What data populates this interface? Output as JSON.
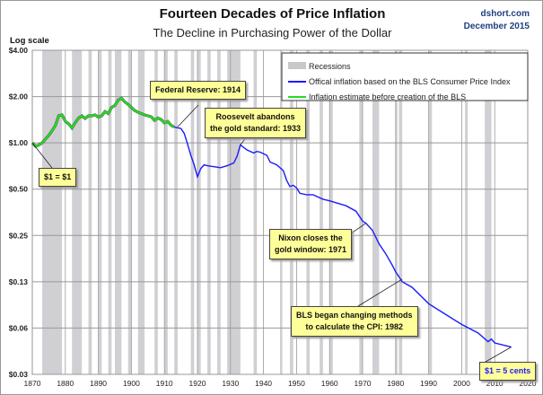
{
  "header": {
    "title": "Fourteen Decades of Price Inflation",
    "subtitle": "The Decline in Purchasing Power of the Dollar",
    "source": "dshort.com",
    "date": "December 2015",
    "ylabel": "Log scale"
  },
  "chart_data": {
    "type": "line",
    "title": "Fourteen Decades of Price Inflation",
    "subtitle": "The Decline in Purchasing Power of the Dollar",
    "ylabel": "Log scale",
    "yscale": "log",
    "xlim": [
      1870,
      2020
    ],
    "ylim": [
      0.03125,
      4
    ],
    "xticks": [
      "1870",
      "1880",
      "1890",
      "1900",
      "1910",
      "1920",
      "1930",
      "1940",
      "1950",
      "1960",
      "1970",
      "1980",
      "1990",
      "2000",
      "2010",
      "2020"
    ],
    "yticks": [
      {
        "v": 4,
        "label": "$4.00"
      },
      {
        "v": 2,
        "label": "$2.00"
      },
      {
        "v": 1,
        "label": "$1.00"
      },
      {
        "v": 0.5,
        "label": "$0.50"
      },
      {
        "v": 0.25,
        "label": "$0.25"
      },
      {
        "v": 0.125,
        "label": "$0.13"
      },
      {
        "v": 0.0625,
        "label": "$0.06"
      },
      {
        "v": 0.03125,
        "label": "$0.03"
      }
    ],
    "grid": true,
    "legend": {
      "placement": "top-right",
      "entries": [
        {
          "name": "Recessions",
          "color": "#c8c8c8"
        },
        {
          "name": "Offical inflation based on the BLS Consumer Price Index",
          "color": "#1a1aff"
        },
        {
          "name": "Inflation estimate before creation of the BLS",
          "color": "#22dd22"
        }
      ]
    },
    "recessions": [
      [
        1873,
        1879
      ],
      [
        1882,
        1885
      ],
      [
        1887,
        1888
      ],
      [
        1890,
        1891
      ],
      [
        1893,
        1894
      ],
      [
        1895,
        1897
      ],
      [
        1899,
        1900
      ],
      [
        1902,
        1904
      ],
      [
        1907,
        1908
      ],
      [
        1910,
        1911
      ],
      [
        1913,
        1914
      ],
      [
        1918,
        1919
      ],
      [
        1920,
        1921
      ],
      [
        1923,
        1924
      ],
      [
        1926,
        1927
      ],
      [
        1929,
        1933
      ],
      [
        1937,
        1938
      ],
      [
        1945,
        1945.7
      ],
      [
        1948,
        1949
      ],
      [
        1953,
        1954
      ],
      [
        1957,
        1958
      ],
      [
        1960,
        1961
      ],
      [
        1969,
        1970
      ],
      [
        1973,
        1975
      ],
      [
        1980,
        1980.5
      ],
      [
        1981,
        1982
      ],
      [
        1990,
        1991
      ],
      [
        2001,
        2001.8
      ],
      [
        2007,
        2009
      ]
    ],
    "series": [
      {
        "name": "Inflation estimate before creation of the BLS",
        "color": "#22dd22",
        "x": [
          1870,
          1871,
          1872,
          1873,
          1874,
          1875,
          1876,
          1877,
          1878,
          1879,
          1880,
          1881,
          1882,
          1883,
          1884,
          1885,
          1886,
          1887,
          1888,
          1889,
          1890,
          1891,
          1892,
          1893,
          1894,
          1895,
          1896,
          1897,
          1898,
          1899,
          1900,
          1901,
          1902,
          1903,
          1904,
          1905,
          1906,
          1907,
          1908,
          1909,
          1910,
          1911,
          1912,
          1913
        ],
        "y": [
          1.0,
          0.95,
          0.97,
          1.0,
          1.06,
          1.12,
          1.2,
          1.3,
          1.5,
          1.52,
          1.38,
          1.33,
          1.25,
          1.35,
          1.45,
          1.5,
          1.44,
          1.5,
          1.5,
          1.52,
          1.47,
          1.5,
          1.6,
          1.55,
          1.7,
          1.75,
          1.9,
          1.95,
          1.85,
          1.78,
          1.7,
          1.62,
          1.58,
          1.55,
          1.52,
          1.5,
          1.48,
          1.4,
          1.45,
          1.42,
          1.35,
          1.38,
          1.3,
          1.27
        ]
      },
      {
        "name": "Offical inflation based on the BLS Consumer Price Index",
        "color": "#1a1aff",
        "x": [
          1913,
          1914,
          1915,
          1916,
          1917,
          1918,
          1919,
          1920,
          1921,
          1922,
          1923,
          1925,
          1927,
          1929,
          1931,
          1932,
          1933,
          1935,
          1937,
          1938,
          1939,
          1941,
          1942,
          1944,
          1946,
          1947,
          1948,
          1949,
          1950,
          1951,
          1953,
          1955,
          1958,
          1960,
          1965,
          1968,
          1970,
          1971,
          1973,
          1975,
          1977,
          1979,
          1980,
          1981,
          1982,
          1985,
          1990,
          1995,
          2000,
          2005,
          2008,
          2009,
          2010,
          2015
        ],
        "y": [
          1.27,
          1.25,
          1.24,
          1.15,
          0.98,
          0.83,
          0.72,
          0.6,
          0.68,
          0.72,
          0.71,
          0.7,
          0.69,
          0.71,
          0.74,
          0.82,
          0.97,
          0.9,
          0.86,
          0.88,
          0.87,
          0.83,
          0.75,
          0.72,
          0.66,
          0.57,
          0.52,
          0.53,
          0.51,
          0.47,
          0.46,
          0.46,
          0.43,
          0.42,
          0.39,
          0.36,
          0.31,
          0.3,
          0.27,
          0.22,
          0.19,
          0.16,
          0.145,
          0.135,
          0.125,
          0.115,
          0.09,
          0.077,
          0.066,
          0.058,
          0.051,
          0.053,
          0.05,
          0.047
        ]
      }
    ],
    "annotations": [
      {
        "text": "Federal Reserve: 1914",
        "x": 1914,
        "y": 1.27
      },
      {
        "text": "Roosevelt abandons the gold standard: 1933",
        "line1": "Roosevelt abandons",
        "line2": "the gold standard: 1933",
        "x": 1933,
        "y": 0.97
      },
      {
        "text": "$1 = $1",
        "x": 1870,
        "y": 1.0
      },
      {
        "text": "Nixon closes the gold window: 1971",
        "line1": "Nixon closes the",
        "line2": "gold window: 1971",
        "x": 1971,
        "y": 0.3
      },
      {
        "text": "BLS began changing methods to calculate the CPI: 1982",
        "line1": "BLS began  changing methods",
        "line2": "to calculate the CPI: 1982",
        "x": 1982,
        "y": 0.13
      },
      {
        "text": "$1 = 5 cents",
        "x": 2015,
        "y": 0.047
      }
    ]
  }
}
